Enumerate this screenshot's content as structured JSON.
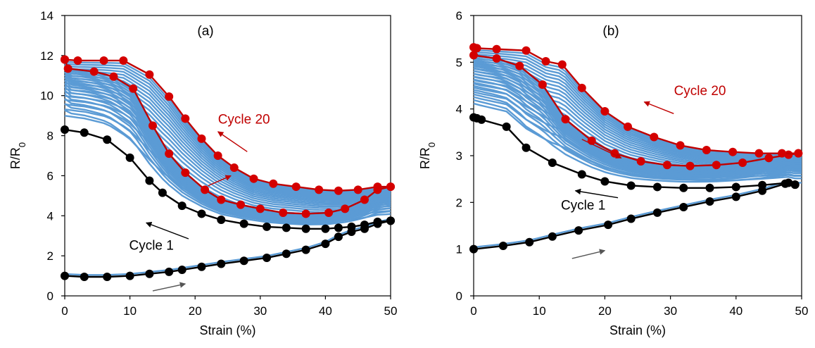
{
  "chart_data": [
    {
      "type": "line",
      "panel_label": "(a)",
      "xlabel": "Strain (%)",
      "ylabel_main": "R/R",
      "ylabel_sub": "0",
      "xlim": [
        0,
        50
      ],
      "ylim": [
        0,
        14
      ],
      "xticks": [
        0,
        10,
        20,
        30,
        40,
        50
      ],
      "yticks": [
        0,
        2,
        4,
        6,
        8,
        10,
        12,
        14
      ],
      "colors": {
        "cycle1": "#000000",
        "cycle20": "#c00000",
        "intermediate": "#5b9bd5",
        "marker20": "#d40000"
      },
      "annotations": [
        {
          "text": "Cycle 20",
          "color": "#c00000",
          "x": 27.5,
          "y": 8.6,
          "arrow_from": [
            28,
            7.2
          ],
          "arrow_to": [
            23.5,
            8.2
          ]
        },
        {
          "text": "Cycle 1",
          "color": "#000000",
          "x": 13.3,
          "y": 2.3,
          "arrow_from": [
            19,
            2.85
          ],
          "arrow_to": [
            12.5,
            3.65
          ]
        }
      ],
      "arrows": [
        {
          "color": "#c00000",
          "from": [
            22,
            5.5
          ],
          "to": [
            25.5,
            6.0
          ]
        },
        {
          "color": "#555555",
          "from": [
            13.5,
            0.25
          ],
          "to": [
            18.5,
            0.6
          ]
        }
      ],
      "series": [
        {
          "key": "cycle1-loading",
          "x": [
            0,
            3,
            6.5,
            10,
            13,
            16,
            18,
            21,
            24,
            27.5,
            31,
            34,
            37,
            40,
            42,
            44,
            46,
            48,
            50
          ],
          "y": [
            1.0,
            0.95,
            0.95,
            1.0,
            1.1,
            1.2,
            1.3,
            1.45,
            1.6,
            1.75,
            1.9,
            2.1,
            2.3,
            2.6,
            2.95,
            3.2,
            3.35,
            3.6,
            3.75
          ]
        },
        {
          "key": "cycle1-unloading",
          "x": [
            50,
            48,
            46,
            44,
            42,
            40,
            37,
            34,
            31,
            27.5,
            24,
            21,
            18,
            15,
            13,
            10,
            6.5,
            3,
            0
          ],
          "y": [
            3.75,
            3.7,
            3.55,
            3.45,
            3.4,
            3.35,
            3.35,
            3.4,
            3.45,
            3.6,
            3.8,
            4.1,
            4.5,
            5.15,
            5.75,
            6.9,
            7.8,
            8.15,
            8.3
          ]
        },
        {
          "key": "cycle20-loading",
          "x": [
            0,
            0.5,
            4.5,
            7.5,
            10.5,
            13.5,
            16,
            18.5,
            21.5,
            24,
            27,
            30,
            33.5,
            37,
            40.5,
            43,
            46,
            48,
            50
          ],
          "y": [
            11.8,
            11.35,
            11.2,
            10.95,
            10.35,
            8.5,
            7.1,
            6.15,
            5.3,
            4.8,
            4.55,
            4.35,
            4.15,
            4.1,
            4.15,
            4.35,
            4.8,
            5.3,
            5.45
          ]
        },
        {
          "key": "cycle20-unloading",
          "x": [
            50,
            48,
            45,
            42,
            39,
            35.5,
            32,
            29,
            26,
            23.5,
            21,
            18.5,
            16,
            13,
            9,
            6,
            2,
            0
          ],
          "y": [
            5.45,
            5.45,
            5.3,
            5.25,
            5.3,
            5.45,
            5.6,
            5.85,
            6.4,
            7.0,
            7.85,
            8.85,
            9.95,
            11.05,
            11.75,
            11.75,
            11.75,
            11.8
          ]
        }
      ]
    },
    {
      "type": "line",
      "panel_label": "(b)",
      "xlabel": "Strain (%)",
      "ylabel_main": "R/R",
      "ylabel_sub": "0",
      "xlim": [
        0,
        50
      ],
      "ylim": [
        0,
        6
      ],
      "xticks": [
        0,
        10,
        20,
        30,
        40,
        50
      ],
      "yticks": [
        0,
        1,
        2,
        3,
        4,
        5,
        6
      ],
      "colors": {
        "cycle1": "#000000",
        "cycle20": "#c00000",
        "intermediate": "#5b9bd5",
        "marker20": "#d40000"
      },
      "annotations": [
        {
          "text": "Cycle 20",
          "color": "#c00000",
          "x": 34.5,
          "y": 4.3,
          "arrow_from": [
            30.5,
            3.9
          ],
          "arrow_to": [
            26,
            4.15
          ]
        },
        {
          "text": "Cycle 1",
          "color": "#000000",
          "x": 16.7,
          "y": 1.85,
          "arrow_from": [
            22,
            2.1
          ],
          "arrow_to": [
            15.5,
            2.25
          ]
        }
      ],
      "arrows": [
        {
          "color": "#c00000",
          "from": [
            16.5,
            3.35
          ],
          "to": [
            22.5,
            2.95
          ]
        },
        {
          "color": "#555555",
          "from": [
            15,
            0.8
          ],
          "to": [
            20,
            0.97
          ]
        }
      ],
      "series": [
        {
          "key": "cycle1-loading",
          "x": [
            0,
            4.5,
            8.5,
            12,
            16,
            20.5,
            24,
            28,
            32,
            36,
            40,
            44,
            47.5,
            49
          ],
          "y": [
            1.0,
            1.07,
            1.15,
            1.27,
            1.4,
            1.52,
            1.65,
            1.78,
            1.9,
            2.02,
            2.12,
            2.25,
            2.4,
            2.38
          ]
        },
        {
          "key": "cycle1-unloading",
          "x": [
            49,
            48,
            44,
            40,
            36,
            32,
            28,
            24,
            20,
            16.5,
            12,
            8,
            5,
            1.2,
            0.5,
            0
          ],
          "y": [
            2.38,
            2.42,
            2.37,
            2.33,
            2.31,
            2.31,
            2.33,
            2.36,
            2.45,
            2.6,
            2.85,
            3.17,
            3.62,
            3.77,
            3.8,
            3.82
          ]
        },
        {
          "key": "cycle20-loading",
          "x": [
            0,
            3.5,
            7,
            10.5,
            14,
            18,
            21.5,
            25.5,
            29.5,
            33,
            37,
            41,
            45,
            48,
            49.5
          ],
          "y": [
            5.15,
            5.08,
            4.92,
            4.52,
            3.78,
            3.32,
            3.05,
            2.88,
            2.8,
            2.78,
            2.8,
            2.85,
            2.95,
            3.02,
            3.05
          ]
        },
        {
          "key": "cycle20-unloading",
          "x": [
            49.5,
            47,
            43.5,
            39.5,
            35.5,
            31.5,
            27.5,
            23.5,
            20,
            16.5,
            13.5,
            11,
            8,
            3.5,
            0.5,
            0
          ],
          "y": [
            3.05,
            3.05,
            3.05,
            3.08,
            3.12,
            3.22,
            3.4,
            3.62,
            3.95,
            4.45,
            4.95,
            5.02,
            5.25,
            5.28,
            5.3,
            5.32
          ]
        }
      ]
    }
  ]
}
